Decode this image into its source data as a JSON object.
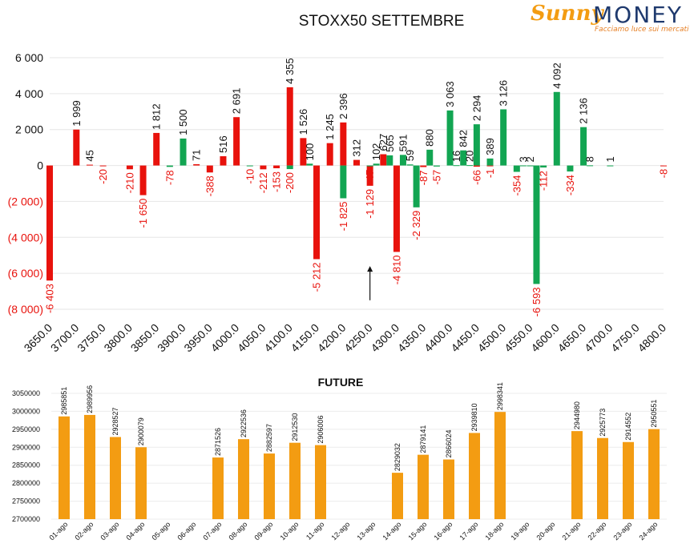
{
  "logo": {
    "sunny": "Sunny",
    "money": "MONEY",
    "tagline": "Facciamo luce sui mercati"
  },
  "chart_data": [
    {
      "type": "bar",
      "title": "STOXX50 SETTEMBRE",
      "ylim": [
        -8000,
        6000
      ],
      "y_ticks": [
        6000,
        4000,
        2000,
        0,
        -2000,
        -4000,
        -6000,
        -8000
      ],
      "y_tick_labels": [
        "6 000",
        "4 000",
        "2 000",
        "0",
        "(2 000)",
        "(4 000)",
        "(6 000)",
        "(8 000)"
      ],
      "x_tick_labels": [
        "3650.0",
        "3700.0",
        "3750.0",
        "3800.0",
        "3850.0",
        "3900.0",
        "3950.0",
        "4000.0",
        "4050.0",
        "4100.0",
        "4150.0",
        "4200.0",
        "4250.0",
        "4300.0",
        "4350.0",
        "4400.0",
        "4450.0",
        "4500.0",
        "4550.0",
        "4600.0",
        "4650.0",
        "4700.0",
        "4750.0",
        "4800.0"
      ],
      "grid": true,
      "series": [
        {
          "color": "#e8120c",
          "points": [
            {
              "x": 3650,
              "y": -6403,
              "label": "-6 403"
            },
            {
              "x": 3700,
              "y": 1999,
              "label": "1 999"
            },
            {
              "x": 3725,
              "y": 45,
              "label": "45"
            },
            {
              "x": 3750,
              "y": -20,
              "label": "-20"
            },
            {
              "x": 3800,
              "y": -210,
              "label": "-210"
            },
            {
              "x": 3825,
              "y": -1650,
              "label": "-1 650"
            },
            {
              "x": 3850,
              "y": 1812,
              "label": "1 812"
            },
            {
              "x": 3925,
              "y": 71,
              "label": "71"
            },
            {
              "x": 3950,
              "y": -388,
              "label": "-388"
            },
            {
              "x": 3975,
              "y": 516,
              "label": "516"
            },
            {
              "x": 4000,
              "y": 2691,
              "label": "2 691"
            },
            {
              "x": 4050,
              "y": -212,
              "label": "-212"
            },
            {
              "x": 4075,
              "y": -153,
              "label": "-153"
            },
            {
              "x": 4100,
              "y": 4355,
              "label": "4 355"
            },
            {
              "x": 4125,
              "y": 1526,
              "label": "1 526"
            },
            {
              "x": 4150,
              "y": -5212,
              "label": "-5 212"
            },
            {
              "x": 4175,
              "y": 1245,
              "label": "1 245"
            },
            {
              "x": 4200,
              "y": 2396,
              "label": "2 396"
            },
            {
              "x": 4225,
              "y": 312,
              "label": "312"
            },
            {
              "x": 4250,
              "y": -1129,
              "label": "-1 129"
            },
            {
              "x": 4275,
              "y": 627,
              "label": "627"
            },
            {
              "x": 4300,
              "y": -4810,
              "label": "-4 810"
            },
            {
              "x": 4350,
              "y": -87,
              "label": "-87"
            },
            {
              "x": 4450,
              "y": -66,
              "label": "-66"
            },
            {
              "x": 4475,
              "y": -1,
              "label": "-1"
            },
            {
              "x": 4800,
              "y": -8,
              "label": "-8"
            }
          ]
        },
        {
          "color": "#12a552",
          "points": [
            {
              "x": 3875,
              "y": -78,
              "label": "-78"
            },
            {
              "x": 3900,
              "y": 1500,
              "label": "1 500"
            },
            {
              "x": 4025,
              "y": -10,
              "label": "-10"
            },
            {
              "x": 4100,
              "y": -200,
              "label": "-200"
            },
            {
              "x": 4137,
              "y": 100,
              "label": "100"
            },
            {
              "x": 4200,
              "y": -1825,
              "label": "-1 825"
            },
            {
              "x": 4250,
              "y": -47,
              "label": "-47"
            },
            {
              "x": 4262,
              "y": 102,
              "label": "102"
            },
            {
              "x": 4287,
              "y": 565,
              "label": "565"
            },
            {
              "x": 4312,
              "y": 591,
              "label": "591"
            },
            {
              "x": 4325,
              "y": 59,
              "label": "59"
            },
            {
              "x": 4337,
              "y": -2329,
              "label": "-2 329"
            },
            {
              "x": 4362,
              "y": 880,
              "label": "880"
            },
            {
              "x": 4375,
              "y": -57,
              "label": "-57"
            },
            {
              "x": 4400,
              "y": 3063,
              "label": "3 063"
            },
            {
              "x": 4412,
              "y": 16,
              "label": "16"
            },
            {
              "x": 4425,
              "y": 842,
              "label": "842"
            },
            {
              "x": 4437,
              "y": 20,
              "label": "20"
            },
            {
              "x": 4450,
              "y": 2294,
              "label": "2 294"
            },
            {
              "x": 4475,
              "y": 389,
              "label": "389"
            },
            {
              "x": 4500,
              "y": 3126,
              "label": "3 126"
            },
            {
              "x": 4525,
              "y": -354,
              "label": "-354"
            },
            {
              "x": 4537,
              "y": 3,
              "label": "3"
            },
            {
              "x": 4550,
              "y": 2,
              "label": "2"
            },
            {
              "x": 4562,
              "y": -6593,
              "label": "-6 593"
            },
            {
              "x": 4575,
              "y": -112,
              "label": "-112"
            },
            {
              "x": 4600,
              "y": 4092,
              "label": "4 092"
            },
            {
              "x": 4625,
              "y": -334,
              "label": "-334"
            },
            {
              "x": 4650,
              "y": 2136,
              "label": "2 136"
            },
            {
              "x": 4662,
              "y": 8,
              "label": "8"
            },
            {
              "x": 4700,
              "y": 1,
              "label": "1"
            }
          ]
        }
      ],
      "annotation": {
        "x": 4250,
        "y_from": -7500,
        "y_to": -5600
      }
    },
    {
      "type": "bar",
      "title": "FUTURE",
      "ylim": [
        2700000,
        3050000
      ],
      "y_tick_labels": [
        "3050000",
        "3000000",
        "2950000",
        "2900000",
        "2850000",
        "2800000",
        "2750000",
        "2700000"
      ],
      "color": "#f39c12",
      "categories": [
        "01-ago",
        "02-ago",
        "03-ago",
        "04-ago",
        "05-ago",
        "06-ago",
        "07-ago",
        "08-ago",
        "09-ago",
        "10-ago",
        "11-ago",
        "12-ago",
        "13-ago",
        "14-ago",
        "15-ago",
        "16-ago",
        "17-ago",
        "18-ago",
        "19-ago",
        "20-ago",
        "21-ago",
        "22-ago",
        "23-ago",
        "24-ago"
      ],
      "values": [
        2985851,
        2989956,
        2928527,
        2900079,
        null,
        null,
        2871526,
        2922536,
        2882597,
        2912530,
        2906006,
        null,
        null,
        2829032,
        2879141,
        2866024,
        2939810,
        2998341,
        null,
        null,
        2944980,
        2925773,
        2914552,
        2950551
      ]
    }
  ]
}
